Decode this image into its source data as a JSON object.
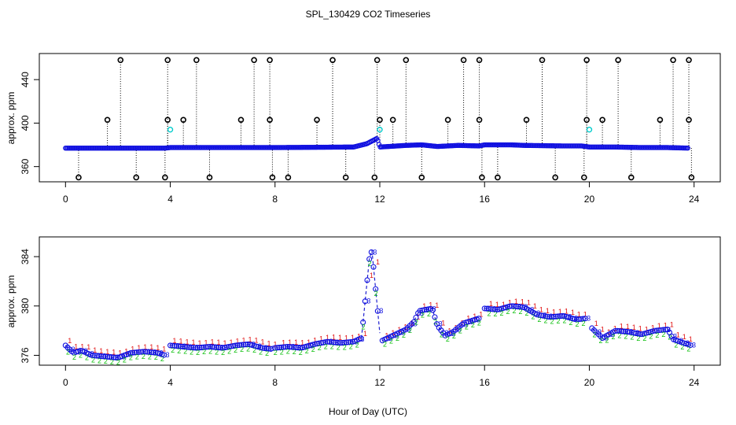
{
  "chart_data": {
    "title": "SPL_130429  CO2 Timeseries",
    "xlabel": "Hour of Day (UTC)",
    "panels": [
      {
        "id": "raw",
        "type": "scatter",
        "ylabel": "approx. ppm",
        "xlim": [
          -1,
          25
        ],
        "ylim": [
          346,
          464
        ],
        "xticks": [
          0,
          4,
          8,
          12,
          16,
          20,
          24
        ],
        "yticks": [
          360,
          400,
          440
        ],
        "baseline": [
          [
            0,
            377
          ],
          [
            3.8,
            377
          ],
          [
            4,
            377.5
          ],
          [
            8,
            377.5
          ],
          [
            11,
            378
          ],
          [
            11.5,
            381
          ],
          [
            11.9,
            386
          ],
          [
            12,
            378
          ],
          [
            13,
            379.5
          ],
          [
            13.6,
            380
          ],
          [
            14.2,
            378.5
          ],
          [
            15,
            379.5
          ],
          [
            15.8,
            379
          ],
          [
            16,
            380
          ],
          [
            17,
            380
          ],
          [
            17.5,
            379.5
          ],
          [
            19,
            379
          ],
          [
            19.7,
            379
          ],
          [
            20,
            378
          ],
          [
            21,
            378
          ],
          [
            22,
            377.5
          ],
          [
            23,
            377.5
          ],
          [
            23.8,
            377
          ]
        ],
        "spikes_high": [
          2.1,
          3.9,
          5.0,
          7.2,
          7.8,
          10.2,
          11.9,
          13.0,
          15.2,
          15.8,
          18.2,
          19.9,
          21.1,
          23.2,
          23.8
        ],
        "spikes_low": [
          0.5,
          2.7,
          3.8,
          5.5,
          7.9,
          8.5,
          10.7,
          11.8,
          13.6,
          15.9,
          16.5,
          18.7,
          19.8,
          21.6,
          23.9
        ],
        "spikes_mid": [
          1.6,
          3.9,
          4.5,
          6.7,
          7.8,
          9.6,
          12.0,
          12.5,
          14.6,
          15.8,
          17.6,
          19.9,
          20.5,
          22.7,
          23.8
        ],
        "spike_values": {
          "high": 458,
          "mid": 403,
          "low": 350
        },
        "cyan_points": [
          [
            4.0,
            394
          ],
          [
            12.0,
            394
          ],
          [
            20.0,
            394
          ]
        ],
        "colors": {
          "baseline": "#1010e0",
          "baseline_accent": "#20c0c0",
          "spike": "#000000",
          "cyan": "#00cccc"
        }
      },
      {
        "id": "filtered",
        "type": "line",
        "ylabel": "approx. ppm",
        "xlim": [
          -1,
          25
        ],
        "ylim": [
          375.2,
          385.6
        ],
        "xticks": [
          0,
          4,
          8,
          12,
          16,
          20,
          24
        ],
        "yticks": [
          376,
          380,
          384
        ],
        "series": [
          [
            [
              0,
              376.8
            ],
            [
              0.3,
              376.2
            ],
            [
              0.6,
              376.4
            ],
            [
              1,
              376.0
            ],
            [
              1.5,
              375.9
            ],
            [
              2,
              375.8
            ],
            [
              2.5,
              376.2
            ],
            [
              3,
              376.3
            ],
            [
              3.5,
              376.2
            ],
            [
              3.8,
              376.0
            ]
          ],
          [
            [
              4,
              376.8
            ],
            [
              4.5,
              376.7
            ],
            [
              5,
              376.6
            ],
            [
              5.5,
              376.7
            ],
            [
              6,
              376.6
            ],
            [
              6.5,
              376.8
            ],
            [
              7,
              376.9
            ],
            [
              7.5,
              376.6
            ],
            [
              7.9,
              376.5
            ]
          ],
          [
            [
              8,
              376.6
            ],
            [
              8.5,
              376.7
            ],
            [
              9,
              376.6
            ],
            [
              9.5,
              376.9
            ],
            [
              10,
              377.1
            ],
            [
              10.5,
              377.0
            ],
            [
              11,
              377.1
            ],
            [
              11.3,
              377.4
            ],
            [
              11.6,
              383.8
            ],
            [
              11.7,
              384.5
            ],
            [
              12,
              377.8
            ]
          ],
          [
            [
              12.1,
              377.2
            ],
            [
              12.5,
              377.6
            ],
            [
              13,
              378.1
            ],
            [
              13.3,
              378.7
            ],
            [
              13.5,
              379.6
            ],
            [
              14,
              379.8
            ],
            [
              14.2,
              378.4
            ],
            [
              14.5,
              377.6
            ],
            [
              14.8,
              377.9
            ],
            [
              15.2,
              378.6
            ],
            [
              15.8,
              379.0
            ]
          ],
          [
            [
              16,
              379.8
            ],
            [
              16.5,
              379.7
            ],
            [
              17,
              380.0
            ],
            [
              17.5,
              379.9
            ],
            [
              18,
              379.3
            ],
            [
              18.5,
              379.1
            ],
            [
              19,
              379.2
            ],
            [
              19.5,
              378.9
            ],
            [
              19.9,
              379.0
            ]
          ],
          [
            [
              20.1,
              378.2
            ],
            [
              20.5,
              377.4
            ],
            [
              21,
              378.0
            ],
            [
              21.5,
              377.9
            ],
            [
              22,
              377.7
            ],
            [
              22.5,
              378.0
            ],
            [
              23,
              378.1
            ],
            [
              23.2,
              377.3
            ],
            [
              23.6,
              377.0
            ],
            [
              23.9,
              376.8
            ]
          ]
        ],
        "colors": {
          "line": "#2020d0",
          "circle": "#1010e0",
          "marker_one": "#e01010",
          "marker_two": "#10c010",
          "marker_three": "#1010e0"
        }
      }
    ]
  }
}
